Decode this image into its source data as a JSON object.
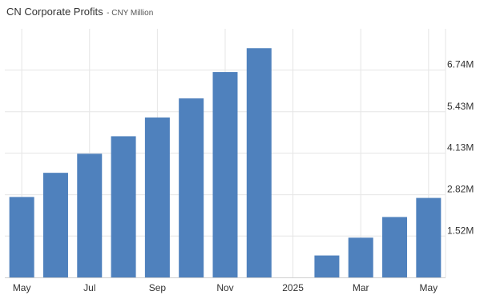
{
  "header": {
    "title": "CN Corporate Profits",
    "subtitle": "- CNY Million"
  },
  "colors": {
    "bar": "#4f81bd",
    "grid": "#e6e6e6",
    "axis": "#cfcfcf",
    "text": "#333333"
  },
  "chart_data": {
    "type": "bar",
    "title": "CN Corporate Profits",
    "subtitle": "- CNY Million",
    "xlabel": "",
    "ylabel": "",
    "categories": [
      "2024-05",
      "2024-06",
      "2024-07",
      "2024-08",
      "2024-09",
      "2024-10",
      "2024-11",
      "2024-12",
      "2025-01",
      "2025-02",
      "2025-03",
      "2025-04",
      "2025-05"
    ],
    "values": [
      2750000,
      3510000,
      4110000,
      4660000,
      5250000,
      5850000,
      6680000,
      7430000,
      null,
      910000,
      1470000,
      2120000,
      2720000
    ],
    "x_tick_labels": [
      {
        "category": "2024-05",
        "label": "May"
      },
      {
        "category": "2024-07",
        "label": "Jul"
      },
      {
        "category": "2024-09",
        "label": "Sep"
      },
      {
        "category": "2024-11",
        "label": "Nov"
      },
      {
        "category": "2025-01",
        "label": "2025"
      },
      {
        "category": "2025-03",
        "label": "Mar"
      },
      {
        "category": "2025-05",
        "label": "May"
      }
    ],
    "y_ticks": [
      {
        "value": 1520000,
        "label": "1.52M"
      },
      {
        "value": 2820000,
        "label": "2.82M"
      },
      {
        "value": 4130000,
        "label": "4.13M"
      },
      {
        "value": 5430000,
        "label": "5.43M"
      },
      {
        "value": 6740000,
        "label": "6.74M"
      }
    ],
    "ylim": [
      220000,
      8040000
    ],
    "y_axis_position": "right",
    "grid": true,
    "legend": "none"
  }
}
